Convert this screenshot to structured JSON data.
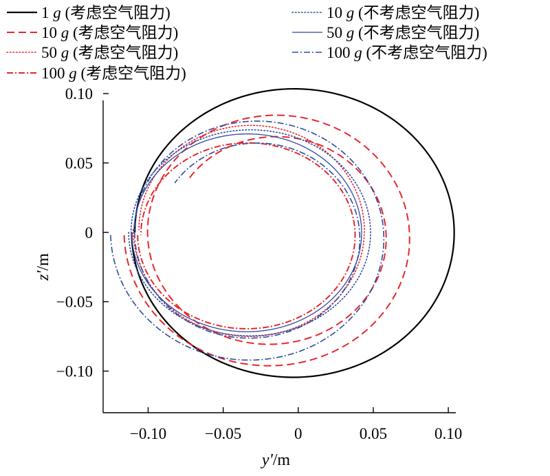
{
  "chart_data": {
    "type": "line",
    "title": "",
    "xlabel_var": "y'",
    "xlabel_unit": "/m",
    "ylabel_var": "z'",
    "ylabel_unit": "/m",
    "xlim": [
      -0.13,
      0.105
    ],
    "ylim": [
      -0.13,
      0.102
    ],
    "x_ticks": [
      -0.1,
      -0.05,
      0,
      0.05,
      0.1
    ],
    "x_tick_labels": [
      "−0.10",
      "−0.05",
      "0",
      "0.05",
      "0.10"
    ],
    "y_ticks": [
      -0.1,
      -0.05,
      0,
      0.05,
      0.1
    ],
    "y_tick_labels": [
      "−0.10",
      "−0.05",
      "0",
      "0.05",
      "0.10"
    ],
    "grid": false,
    "legend_position": "top",
    "series": [
      {
        "name": "1 g (考虑空气阻力)",
        "legend_num": "1",
        "legend_desc": "(考虑空气阻力)",
        "color": "#000000",
        "dash": "solid",
        "width": 2.2,
        "orbit": {
          "cx": -0.003,
          "cy": 0.0,
          "rx": 0.108,
          "ry": 0.105,
          "turns": 1.0,
          "shrink": 0.02
        }
      },
      {
        "name": "10 g (考虑空气阻力)",
        "legend_num": "10",
        "legend_desc": "(考虑空气阻力)",
        "color": "#e8262b",
        "dash": "long-dash",
        "width": 2.0,
        "orbit": {
          "cx": -0.017,
          "cy": -0.002,
          "rx": 0.099,
          "ry": 0.098,
          "turns": 1.9,
          "shrink": 0.3
        }
      },
      {
        "name": "50 g (考虑空气阻力)",
        "legend_num": "50",
        "legend_desc": "(考虑空气阻力)",
        "color": "#e8262b",
        "dash": "dot",
        "width": 1.6,
        "orbit": {
          "cx": -0.032,
          "cy": 0.002,
          "rx": 0.078,
          "ry": 0.078,
          "turns": 1.0,
          "shrink": 0.05
        }
      },
      {
        "name": "100 g (考虑空气阻力)",
        "legend_num": "100",
        "legend_desc": "(考虑空气阻力)",
        "color": "#e8262b",
        "dash": "dash-dot",
        "width": 2.0,
        "orbit": {
          "cx": -0.034,
          "cy": -0.002,
          "rx": 0.073,
          "ry": 0.068,
          "turns": 1.0,
          "shrink": 0.03
        }
      },
      {
        "name": "10 g (不考虑空气阻力)",
        "legend_num": "10",
        "legend_desc": "(不考虑空气阻力)",
        "color": "#2b4b9e",
        "dash": "dot",
        "width": 1.6,
        "orbit": {
          "cx": -0.032,
          "cy": 0.0,
          "rx": 0.081,
          "ry": 0.075,
          "turns": 1.0,
          "shrink": 0.02
        }
      },
      {
        "name": "50 g (不考虑空气阻力)",
        "legend_num": "50",
        "legend_desc": "(不考虑空气阻力)",
        "color": "#2b4b9e",
        "dash": "solid",
        "width": 1.3,
        "orbit": {
          "cx": -0.034,
          "cy": 0.0,
          "rx": 0.077,
          "ry": 0.072,
          "turns": 1.0,
          "shrink": 0.02
        }
      },
      {
        "name": "100 g (不考虑空气阻力)",
        "legend_num": "100",
        "legend_desc": "(不考虑空气阻力)",
        "color": "#2b4b9e",
        "dash": "dash-dot",
        "width": 1.6,
        "orbit": {
          "cx": -0.03,
          "cy": -0.002,
          "rx": 0.095,
          "ry": 0.094,
          "turns": 1.9,
          "shrink": 0.32
        }
      }
    ]
  }
}
